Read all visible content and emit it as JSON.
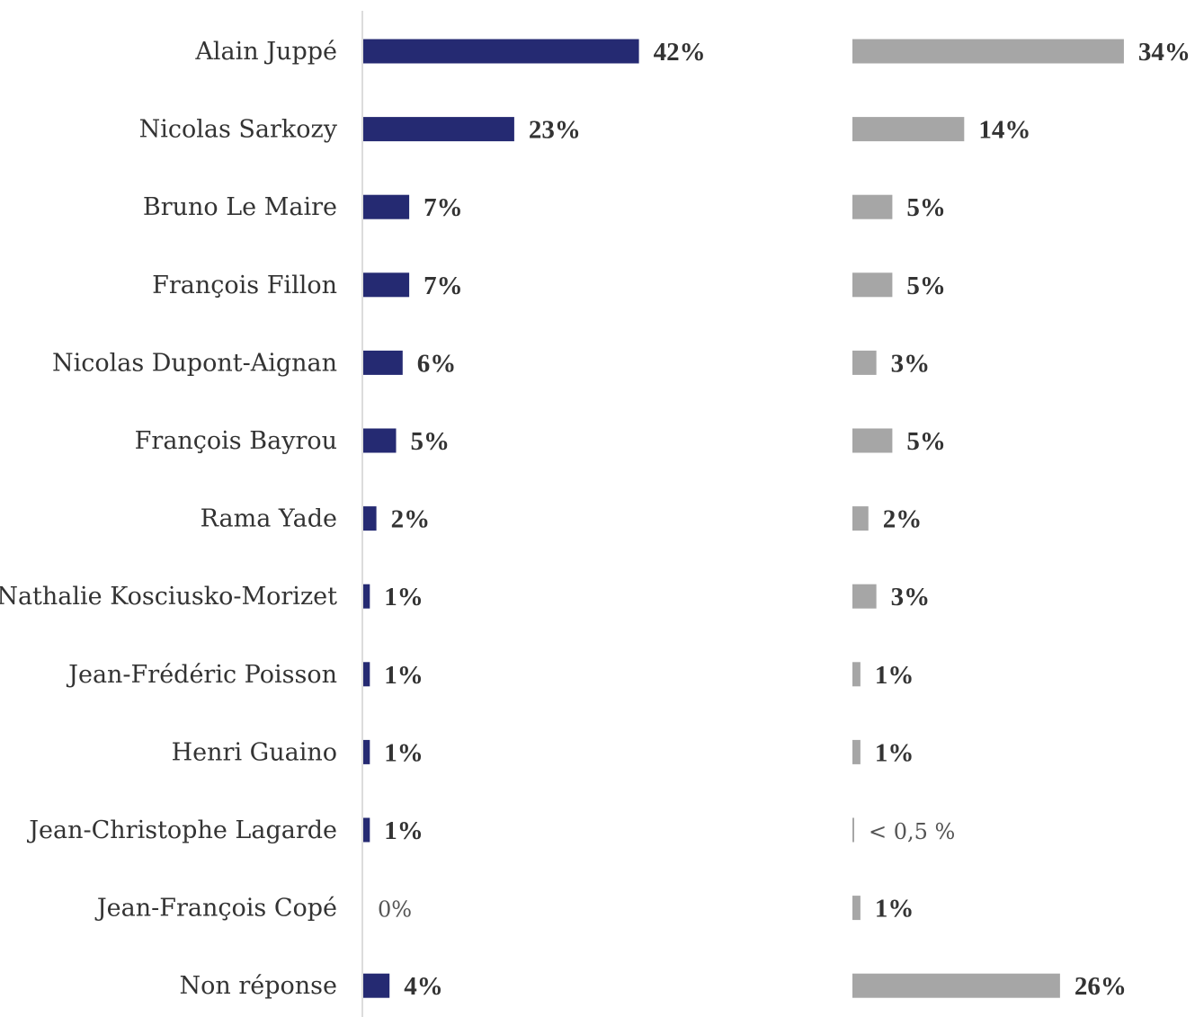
{
  "chart_data": {
    "type": "bar",
    "orientation": "horizontal",
    "categories": [
      "Alain Juppé",
      "Nicolas Sarkozy",
      "Bruno Le Maire",
      "François Fillon",
      "Nicolas Dupont-Aignan",
      "François Bayrou",
      "Rama Yade",
      "Nathalie Kosciusko-Morizet",
      "Jean-Frédéric Poisson",
      "Henri Guaino",
      "Jean-Christophe Lagarde",
      "Jean-François Copé",
      "Non réponse"
    ],
    "series": [
      {
        "color": "#252a72",
        "values": [
          42,
          23,
          7,
          7,
          6,
          5,
          2,
          1,
          1,
          1,
          1,
          0,
          4
        ],
        "labels": [
          "42%",
          "23%",
          "7%",
          "7%",
          "6%",
          "5%",
          "2%",
          "1%",
          "1%",
          "1%",
          "1%",
          "0%",
          "4%"
        ]
      },
      {
        "color": "#a6a6a6",
        "values": [
          34,
          14,
          5,
          5,
          3,
          5,
          2,
          3,
          1,
          1,
          0.2,
          1,
          26
        ],
        "labels": [
          "34%",
          "14%",
          "5%",
          "5%",
          "3%",
          "5%",
          "2%",
          "3%",
          "1%",
          "1%",
          "< 0,5 %",
          "1%",
          "26%"
        ]
      }
    ],
    "grid": false,
    "legend": "none"
  }
}
